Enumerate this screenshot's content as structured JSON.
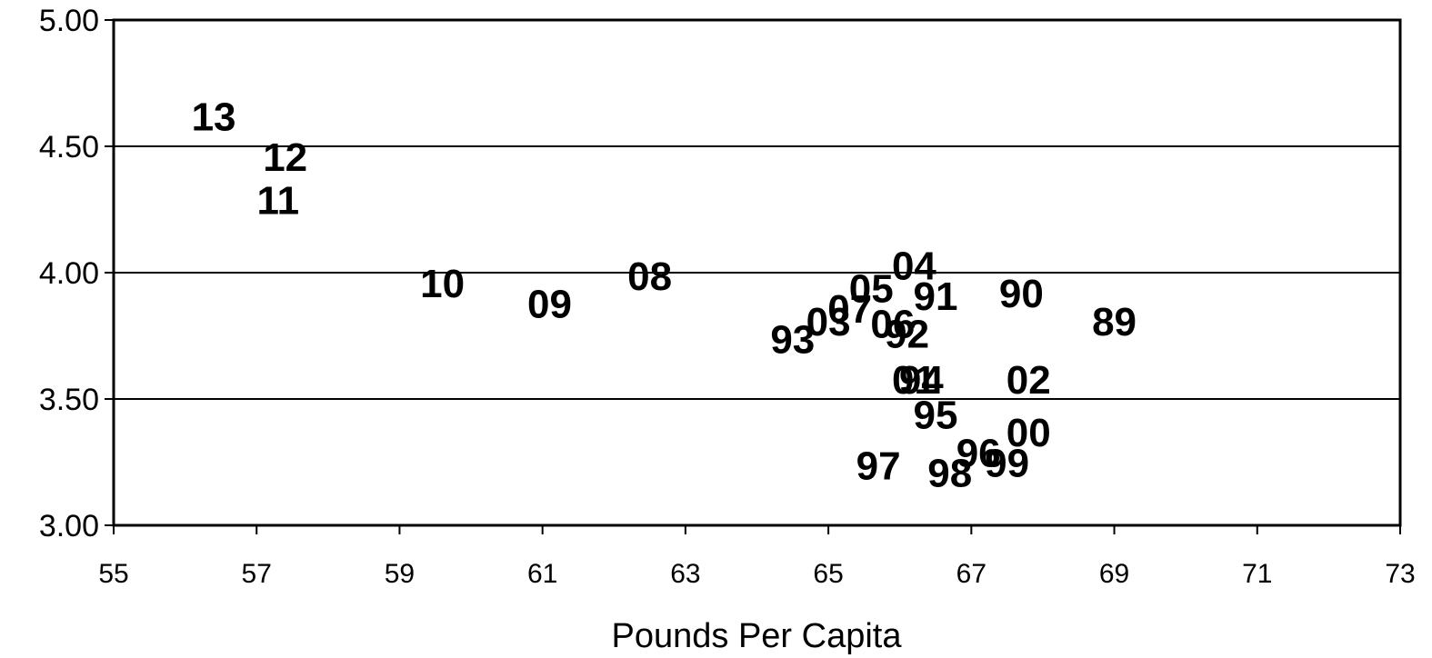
{
  "chart_data": {
    "type": "scatter",
    "title": "",
    "xlabel": "Pounds Per Capita",
    "ylabel": "",
    "xlim": [
      55,
      73
    ],
    "ylim": [
      3.0,
      5.0
    ],
    "x_ticks": [
      "55",
      "57",
      "59",
      "61",
      "63",
      "65",
      "67",
      "69",
      "71",
      "73"
    ],
    "y_ticks": [
      "3.00",
      "3.50",
      "4.00",
      "4.50",
      "5.00"
    ],
    "grid": "horizontal",
    "series": [
      {
        "points": [
          {
            "label": "13",
            "x": 56.4,
            "y": 4.62
          },
          {
            "label": "12",
            "x": 57.4,
            "y": 4.46
          },
          {
            "label": "11",
            "x": 57.3,
            "y": 4.29
          },
          {
            "label": "10",
            "x": 59.6,
            "y": 3.96
          },
          {
            "label": "09",
            "x": 61.1,
            "y": 3.88
          },
          {
            "label": "08",
            "x": 62.5,
            "y": 3.99
          },
          {
            "label": "04",
            "x": 66.2,
            "y": 4.03
          },
          {
            "label": "05",
            "x": 65.6,
            "y": 3.94
          },
          {
            "label": "91",
            "x": 66.5,
            "y": 3.91
          },
          {
            "label": "90",
            "x": 67.7,
            "y": 3.92
          },
          {
            "label": "89",
            "x": 69.0,
            "y": 3.81
          },
          {
            "label": "07",
            "x": 65.3,
            "y": 3.86
          },
          {
            "label": "03",
            "x": 65.0,
            "y": 3.81
          },
          {
            "label": "06",
            "x": 65.9,
            "y": 3.8
          },
          {
            "label": "92",
            "x": 66.1,
            "y": 3.76
          },
          {
            "label": "93",
            "x": 64.5,
            "y": 3.74
          },
          {
            "label": "01",
            "x": 66.2,
            "y": 3.58
          },
          {
            "label": "94",
            "x": 66.3,
            "y": 3.58
          },
          {
            "label": "02",
            "x": 67.8,
            "y": 3.58
          },
          {
            "label": "95",
            "x": 66.5,
            "y": 3.44
          },
          {
            "label": "00",
            "x": 67.8,
            "y": 3.37
          },
          {
            "label": "96",
            "x": 67.1,
            "y": 3.29
          },
          {
            "label": "99",
            "x": 67.5,
            "y": 3.25
          },
          {
            "label": "97",
            "x": 65.7,
            "y": 3.24
          },
          {
            "label": "98",
            "x": 66.7,
            "y": 3.21
          }
        ]
      }
    ]
  }
}
